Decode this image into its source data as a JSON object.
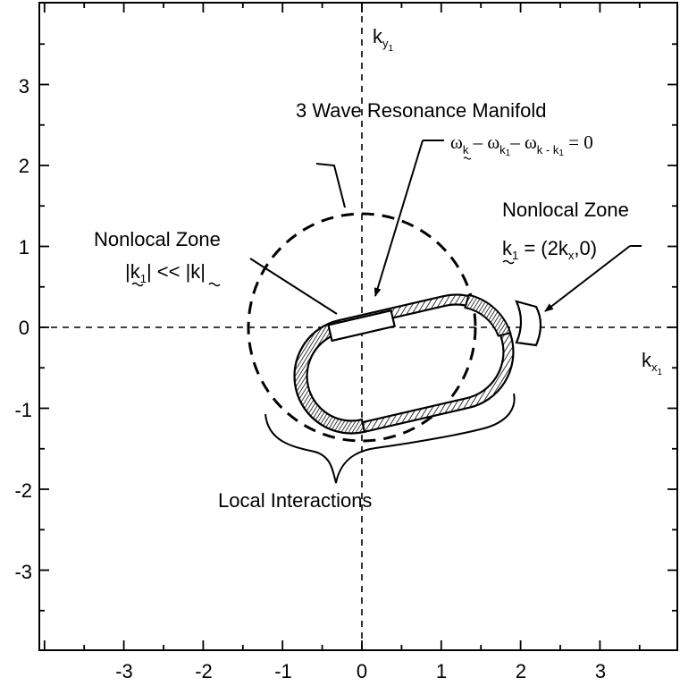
{
  "axes": {
    "x_label": "k",
    "x_label_sub": "x",
    "x_label_subsub": "1",
    "y_label": "k",
    "y_label_sub": "y",
    "y_label_subsub": "1",
    "x_ticks": [
      "-3",
      "-2",
      "-1",
      "0",
      "1",
      "2",
      "3"
    ],
    "y_ticks": [
      "3",
      "2",
      "1",
      "0",
      "-1",
      "-2",
      "-3"
    ]
  },
  "annotations": {
    "manifold_title": "3 Wave Resonance Manifold",
    "equation": {
      "w1": "ω",
      "w1_sub": "k",
      "minus1": " – ",
      "w2": "ω",
      "w2_sub": "k",
      "w2_subsub": "1",
      "minus2": "– ",
      "w3": "ω",
      "w3_sub": "k - k",
      "w3_subsub": "1",
      "equals": " = 0"
    },
    "nonlocal_left": {
      "title": "Nonlocal Zone",
      "line2_a": "|k",
      "line2_a_sub": "1",
      "line2_b": "| << |k|"
    },
    "nonlocal_right": {
      "title": "Nonlocal Zone",
      "line2_k": "k",
      "line2_k_sub": "1",
      "line2_rest_a": " = (2k",
      "line2_rest_sub": "x",
      "line2_rest_b": ",0)"
    },
    "local_label": "Local Interactions"
  }
}
